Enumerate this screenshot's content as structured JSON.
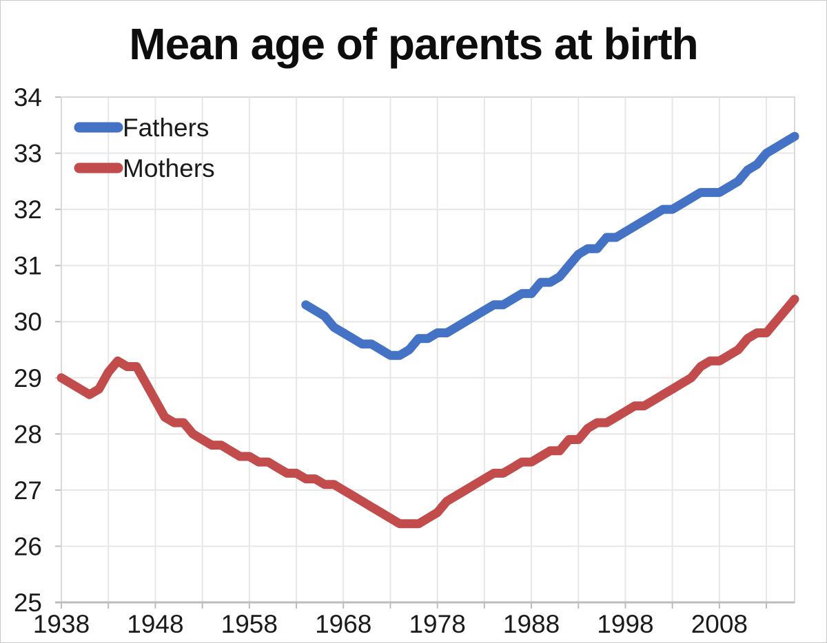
{
  "title": "Mean age of parents at birth",
  "legend": {
    "items": [
      {
        "label": "Fathers",
        "color": "#4472c4"
      },
      {
        "label": "Mothers",
        "color": "#c24b4b"
      }
    ]
  },
  "chart_data": {
    "type": "line",
    "title": "Mean age of parents at birth",
    "xlabel": "",
    "ylabel": "",
    "x_range": [
      1938,
      2016
    ],
    "y_range": [
      25,
      34
    ],
    "x_ticks_labeled": [
      1938,
      1948,
      1958,
      1968,
      1978,
      1988,
      1998,
      2008
    ],
    "x_grid_step": 5,
    "y_ticks": [
      25,
      26,
      27,
      28,
      29,
      30,
      31,
      32,
      33,
      34
    ],
    "grid": true,
    "legend_position": "top-left-inside",
    "series": [
      {
        "name": "Fathers",
        "color": "#4472c4",
        "start_year": 1964,
        "values": [
          30.3,
          30.2,
          30.1,
          29.9,
          29.8,
          29.7,
          29.6,
          29.6,
          29.5,
          29.4,
          29.4,
          29.5,
          29.7,
          29.7,
          29.8,
          29.8,
          29.9,
          30.0,
          30.1,
          30.2,
          30.3,
          30.3,
          30.4,
          30.5,
          30.5,
          30.7,
          30.7,
          30.8,
          31.0,
          31.2,
          31.3,
          31.3,
          31.5,
          31.5,
          31.6,
          31.7,
          31.8,
          31.9,
          32.0,
          32.0,
          32.1,
          32.2,
          32.3,
          32.3,
          32.3,
          32.4,
          32.5,
          32.7,
          32.8,
          33.0,
          33.1,
          33.2,
          33.3
        ]
      },
      {
        "name": "Mothers",
        "color": "#c24b4b",
        "start_year": 1938,
        "values": [
          29.0,
          28.9,
          28.8,
          28.7,
          28.8,
          29.1,
          29.3,
          29.2,
          29.2,
          28.9,
          28.6,
          28.3,
          28.2,
          28.2,
          28.0,
          27.9,
          27.8,
          27.8,
          27.7,
          27.6,
          27.6,
          27.5,
          27.5,
          27.4,
          27.3,
          27.3,
          27.2,
          27.2,
          27.1,
          27.1,
          27.0,
          26.9,
          26.8,
          26.7,
          26.6,
          26.5,
          26.4,
          26.4,
          26.4,
          26.5,
          26.6,
          26.8,
          26.9,
          27.0,
          27.1,
          27.2,
          27.3,
          27.3,
          27.4,
          27.5,
          27.5,
          27.6,
          27.7,
          27.7,
          27.9,
          27.9,
          28.1,
          28.2,
          28.2,
          28.3,
          28.4,
          28.5,
          28.5,
          28.6,
          28.7,
          28.8,
          28.9,
          29.0,
          29.2,
          29.3,
          29.3,
          29.4,
          29.5,
          29.7,
          29.8,
          29.8,
          30.0,
          30.2,
          30.4
        ]
      }
    ]
  },
  "styles": {
    "gridline_color": "#e7e7e7",
    "plot_border_color": "#d9d9d9",
    "axis_line_color": "#bdbdbd",
    "text_color": "#1a1a1a",
    "line_width": 13
  }
}
